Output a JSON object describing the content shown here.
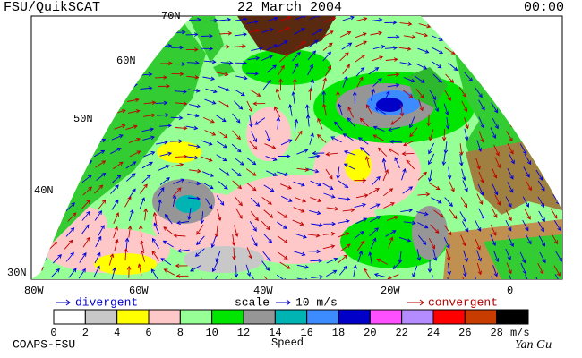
{
  "header": {
    "source": "FSU/QuikSCAT",
    "date": "22 March 2004",
    "time": "00:00"
  },
  "map": {
    "lat_labels": [
      "70N",
      "60N",
      "50N",
      "40N",
      "30N"
    ],
    "lon_labels": [
      "80W",
      "60W",
      "40W",
      "20W",
      "0"
    ]
  },
  "legend": {
    "divergent": "divergent",
    "scale": "scale",
    "scale_value": "10 m/s",
    "convergent": "convergent"
  },
  "colorbar": {
    "ticks": [
      0,
      2,
      4,
      6,
      8,
      10,
      12,
      14,
      16,
      18,
      20,
      22,
      24,
      26,
      28
    ],
    "unit": "m/s",
    "label": "Speed",
    "colors": [
      "#ffffff",
      "#c8c8c8",
      "#ffff00",
      "#ffc8c8",
      "#96ff96",
      "#00e600",
      "#969696",
      "#00b4b4",
      "#3c8cff",
      "#0000c8",
      "#ff50ff",
      "#b48cff",
      "#ff0000",
      "#c83c00",
      "#000000"
    ]
  },
  "footer": {
    "credit": "COAPS-FSU",
    "signature": "Yan Gu"
  }
}
